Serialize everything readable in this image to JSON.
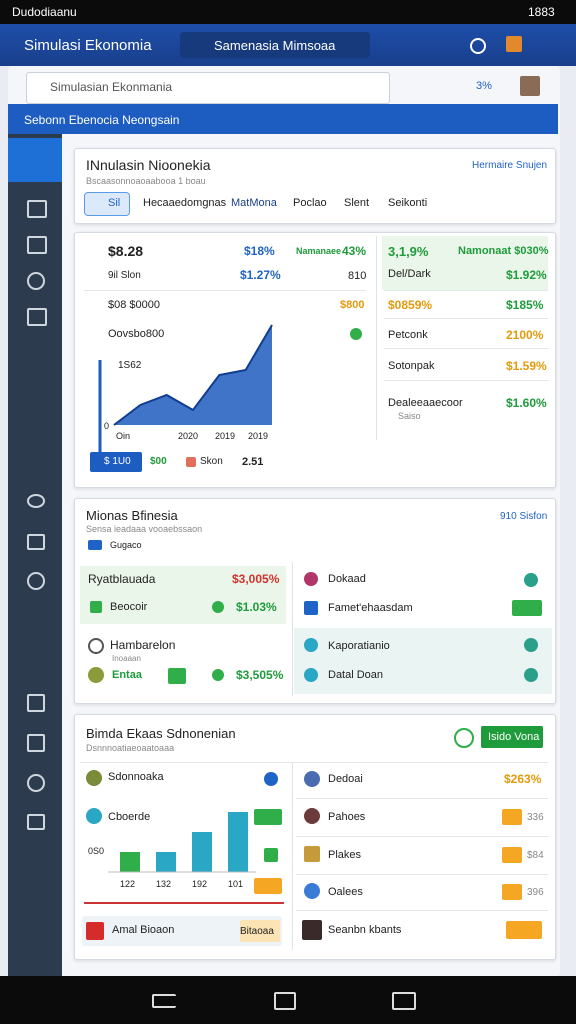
{
  "status_bar": {
    "left": "Dudodiaanu",
    "time": "1883"
  },
  "app_bar": {
    "title": "Simulasi Ekonomia",
    "search": "Samenasia Mimsoaa"
  },
  "search": {
    "placeholder": "Simulasian Ekonmania",
    "badge": "3%"
  },
  "banner": "Sebonn Ebenocia Neongsain",
  "overview": {
    "title": "INnulasin Nioonekia",
    "subtitle": "Bscaasonnoaoaabooa 1 boau",
    "link": "Hermaire Snujen",
    "tabs": [
      "Sil",
      "Hecaaedomgnas",
      "MatMona",
      "Poclao",
      "Slent",
      "Seikonti"
    ]
  },
  "stats": {
    "rows": [
      [
        "$8.28",
        "$18%",
        "Namanaee",
        "43%"
      ],
      [
        "9il Slon",
        "$1.27%",
        "810"
      ],
      [
        "$08 $0000",
        "$800"
      ],
      [
        "Oovsbo800"
      ]
    ],
    "chart": {
      "top_label": "1S62",
      "zero_label": "0",
      "x_labels": [
        "Oin",
        "2020",
        "2019",
        "2019"
      ],
      "ylim": [
        0,
        10
      ],
      "values": [
        0,
        2,
        3,
        1.5,
        5,
        5.5,
        10
      ]
    },
    "legend": [
      "$ 1U0",
      "$00",
      "Skon",
      "2.51"
    ],
    "side": [
      [
        "3,1,9%",
        "Namonaat $030%"
      ],
      [
        "Del/Dark",
        "$1.92%"
      ],
      [
        "$0859%",
        "$185%"
      ],
      [
        "Petconk",
        "2100%"
      ],
      [
        "Sotonpak",
        "$1.59%"
      ],
      [
        "Dealeeaaecoor",
        "$1.60%"
      ]
    ],
    "side_note": "Saiso"
  },
  "markets": {
    "title": "Mionas Bfinesia",
    "subtitle": "Sensa ieadaaa vooaebssaon",
    "link": "910 Sisfon",
    "filter": "Gugaco",
    "cells": [
      [
        "Ryatblauada",
        "$3,005%",
        "Beocoir",
        "$1.03%"
      ],
      [
        "Hambarelon",
        "Inoaaan",
        "Entaa",
        "$3,505%"
      ],
      [
        "Dokaad",
        "Famet'ehaasdam"
      ],
      [
        "Kaporatianio",
        "Datal Doan"
      ]
    ]
  },
  "simulation": {
    "title": "Bimda Ekaas Sdnonenian",
    "subtitle": "Dsnnnoatiaeoaatoaaa",
    "button": "Isido Vona",
    "left": [
      "Sdonnoaka",
      "Cboerde"
    ],
    "chart": {
      "y_label": "0S0",
      "x_labels": [
        "122",
        "132",
        "192",
        "101"
      ],
      "ylim": [
        0,
        60
      ],
      "values": [
        20,
        20,
        40,
        60
      ],
      "colors": [
        "#2fae4a",
        "#2aa7c4",
        "#2aa7c4",
        "#2aa7c4"
      ]
    },
    "footer": [
      "Amal Bioaon",
      "Bitaoaa"
    ],
    "right": [
      [
        "Dedoai",
        "$263%"
      ],
      [
        "Pahoes",
        "336"
      ],
      [
        "Plakes",
        "$84"
      ],
      [
        "Oalees",
        "396"
      ],
      [
        "Seanbn kbants"
      ]
    ]
  }
}
